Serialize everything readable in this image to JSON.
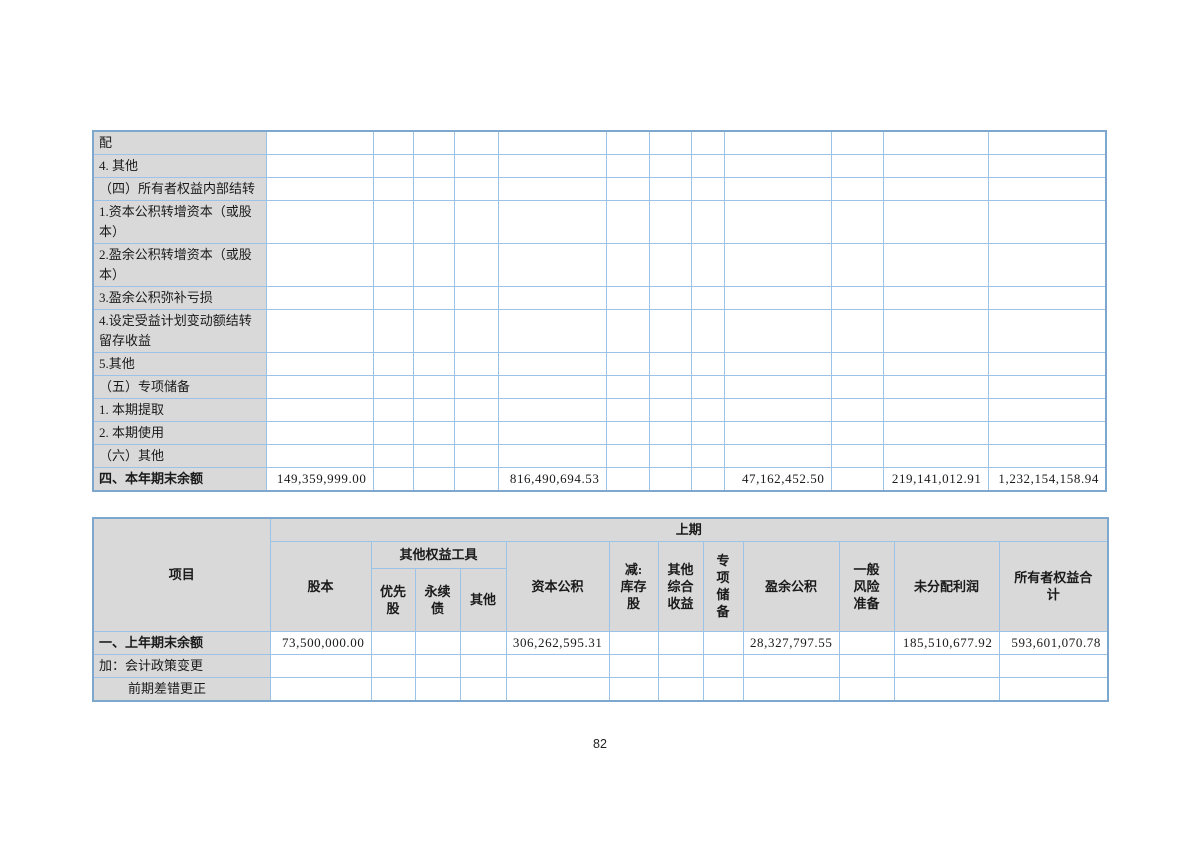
{
  "page_number": "82",
  "colors": {
    "table_border": "#9cc3e6",
    "table_outline": "#7ea7cd",
    "header_bg": "#d9d9d9"
  },
  "top_table": {
    "rows": [
      {
        "label": "配",
        "values": [
          "",
          "",
          "",
          "",
          "",
          "",
          "",
          "",
          "",
          "",
          "",
          ""
        ]
      },
      {
        "label": "4. 其他",
        "values": [
          "",
          "",
          "",
          "",
          "",
          "",
          "",
          "",
          "",
          "",
          "",
          ""
        ]
      },
      {
        "label": "（四）所有者权益内部结转",
        "values": [
          "",
          "",
          "",
          "",
          "",
          "",
          "",
          "",
          "",
          "",
          "",
          ""
        ]
      },
      {
        "label": "1.资本公积转增资本（或股本）",
        "values": [
          "",
          "",
          "",
          "",
          "",
          "",
          "",
          "",
          "",
          "",
          "",
          ""
        ]
      },
      {
        "label": "2.盈余公积转增资本（或股本）",
        "values": [
          "",
          "",
          "",
          "",
          "",
          "",
          "",
          "",
          "",
          "",
          "",
          ""
        ]
      },
      {
        "label": "3.盈余公积弥补亏损",
        "values": [
          "",
          "",
          "",
          "",
          "",
          "",
          "",
          "",
          "",
          "",
          "",
          ""
        ]
      },
      {
        "label": "4.设定受益计划变动额结转留存收益",
        "values": [
          "",
          "",
          "",
          "",
          "",
          "",
          "",
          "",
          "",
          "",
          "",
          ""
        ]
      },
      {
        "label": "5.其他",
        "values": [
          "",
          "",
          "",
          "",
          "",
          "",
          "",
          "",
          "",
          "",
          "",
          ""
        ]
      },
      {
        "label": "（五）专项储备",
        "values": [
          "",
          "",
          "",
          "",
          "",
          "",
          "",
          "",
          "",
          "",
          "",
          ""
        ]
      },
      {
        "label": "1. 本期提取",
        "values": [
          "",
          "",
          "",
          "",
          "",
          "",
          "",
          "",
          "",
          "",
          "",
          ""
        ]
      },
      {
        "label": "2. 本期使用",
        "values": [
          "",
          "",
          "",
          "",
          "",
          "",
          "",
          "",
          "",
          "",
          "",
          ""
        ]
      },
      {
        "label": "（六）其他",
        "values": [
          "",
          "",
          "",
          "",
          "",
          "",
          "",
          "",
          "",
          "",
          "",
          ""
        ]
      },
      {
        "label": "四、本年期末余额",
        "bold": true,
        "values": [
          "149,359,999.00",
          "",
          "",
          "",
          "816,490,694.53",
          "",
          "",
          "",
          "47,162,452.50",
          "",
          "219,141,012.91",
          "1,232,154,158.94"
        ]
      }
    ]
  },
  "bottom_table": {
    "header": {
      "item": "项目",
      "period": "上期",
      "share_capital": "股本",
      "other_equity_instruments": "其他权益工具",
      "preferred_shares": "优先\n股",
      "perpetual_bonds": "永续\n债",
      "other": "其他",
      "capital_reserve": "资本公积",
      "less_treasury_shares": "减:\n库存\n股",
      "other_comprehensive_income": "其他\n综合\n收益",
      "special_reserve": "专\n项\n储\n备",
      "surplus_reserve": "盈余公积",
      "general_risk_reserve": "一般\n风险\n准备",
      "undistributed_profit": "未分配利润",
      "total_equity": "所有者权益合\n计"
    },
    "rows": [
      {
        "label": "一、上年期末余额",
        "bold": true,
        "values": [
          "73,500,000.00",
          "",
          "",
          "",
          "306,262,595.31",
          "",
          "",
          "",
          "28,327,797.55",
          "",
          "185,510,677.92",
          "593,601,070.78"
        ]
      },
      {
        "label": "加：会计政策变更",
        "values": [
          "",
          "",
          "",
          "",
          "",
          "",
          "",
          "",
          "",
          "",
          "",
          ""
        ]
      },
      {
        "label": "前期差错更正",
        "indent": true,
        "values": [
          "",
          "",
          "",
          "",
          "",
          "",
          "",
          "",
          "",
          "",
          "",
          ""
        ]
      }
    ]
  }
}
